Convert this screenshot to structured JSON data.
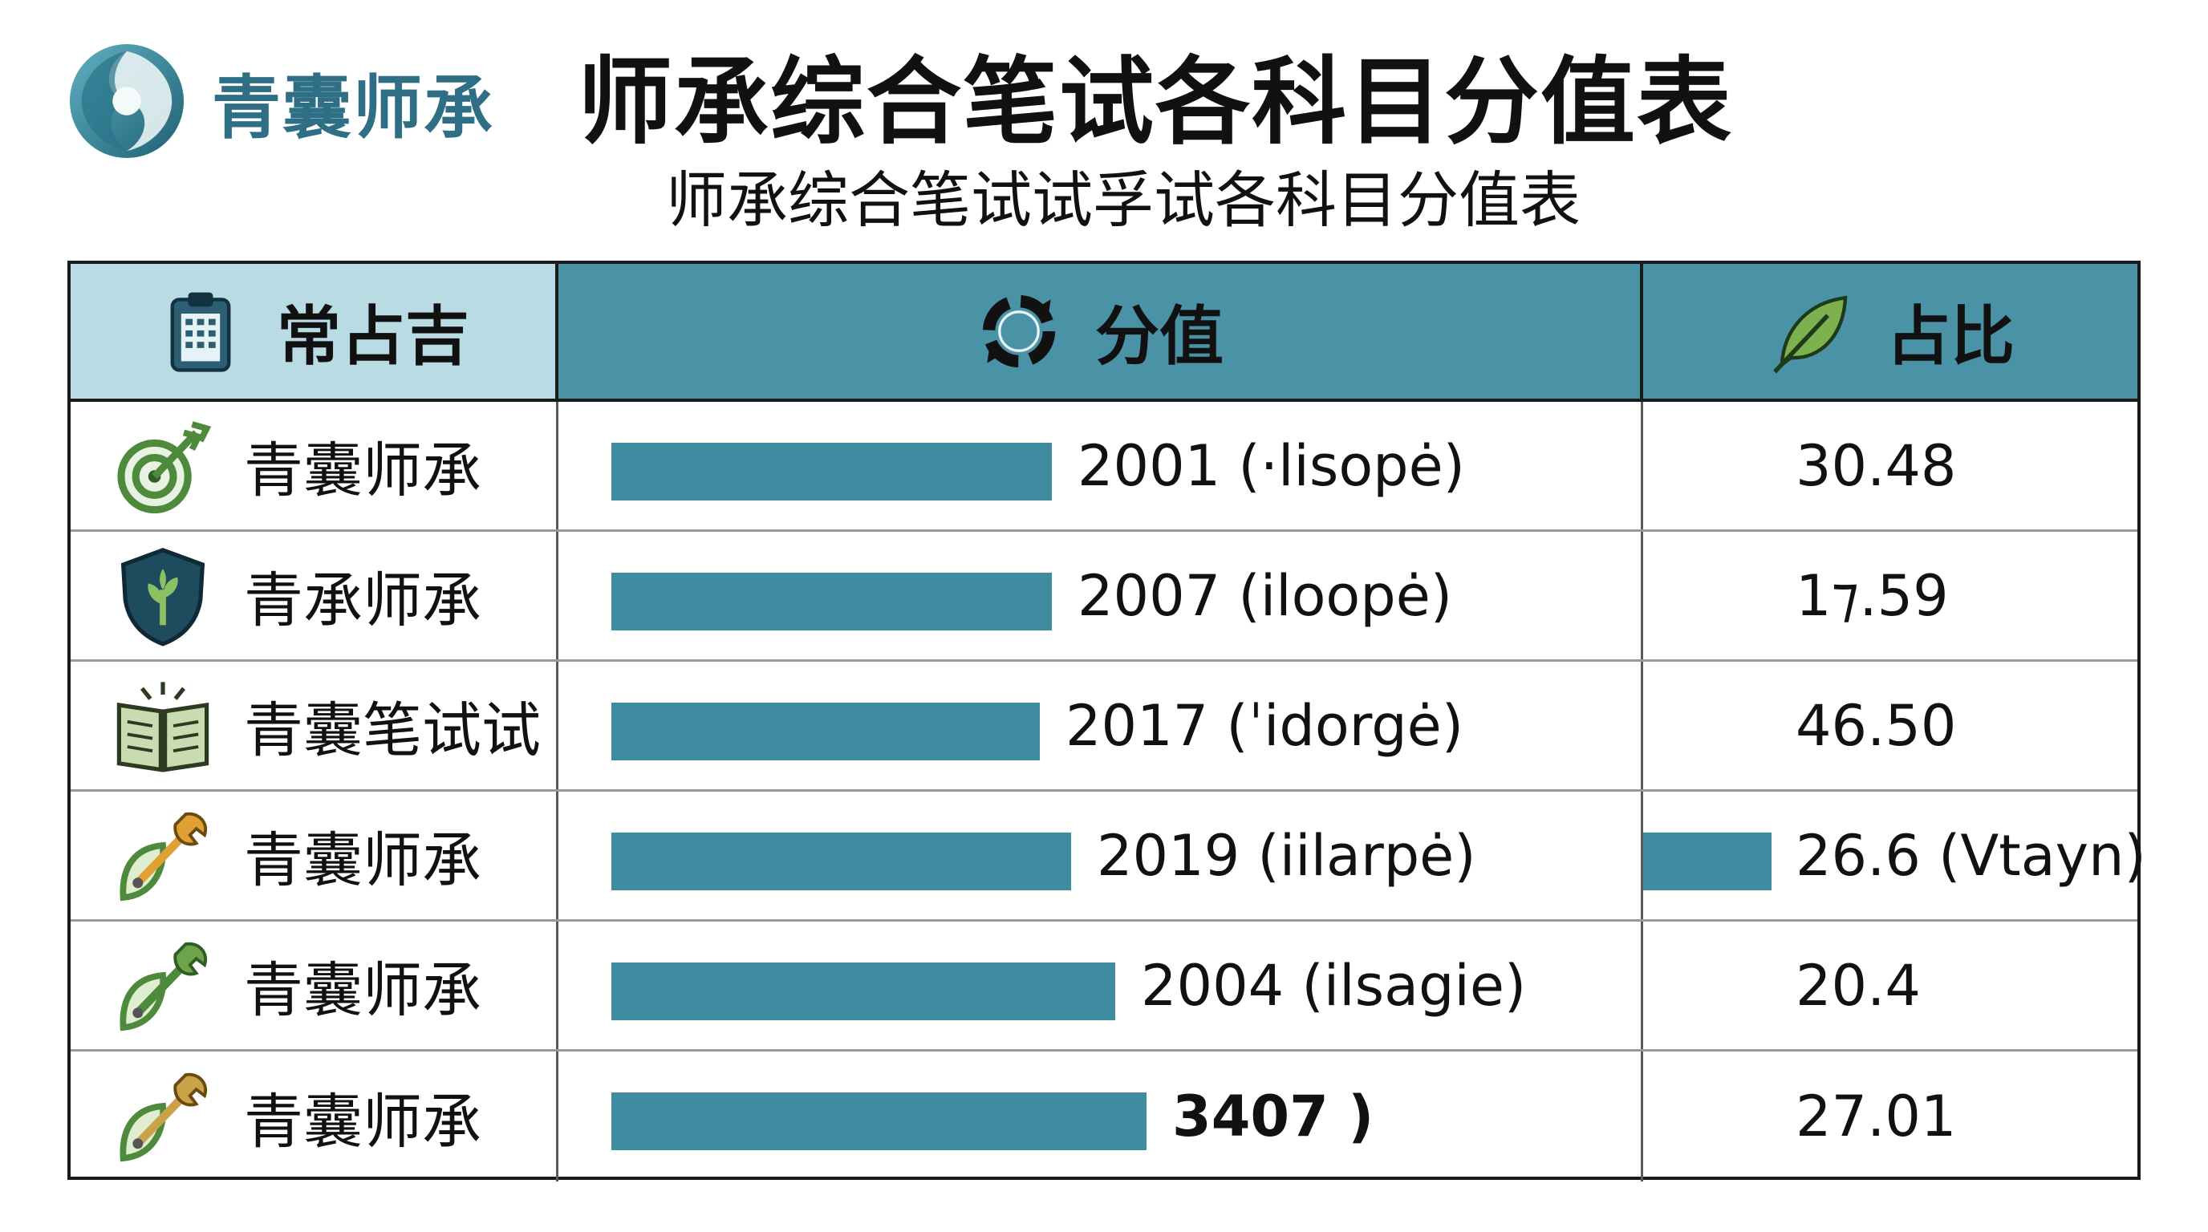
{
  "brand": {
    "name": "青囊师承"
  },
  "title": "师承综合笔试各科目分值表",
  "subtitle": "师承综合笔试试孚试各科目分值表",
  "colors": {
    "bar": "#3f8ca1",
    "header_light": "#b9dbe3",
    "header_dark": "#4a93a6",
    "brand": "#2f6f86"
  },
  "table": {
    "headers": [
      {
        "label": "常占吉",
        "icon": "clipboard-icon"
      },
      {
        "label": "分值",
        "icon": "cycle-icon"
      },
      {
        "label": "占比",
        "icon": "leaf-icon"
      }
    ],
    "rows": [
      {
        "label": "青囊师承",
        "icon": "target-arrow-icon",
        "value_text": "2001 (·lisopė)",
        "pct": "30.48"
      },
      {
        "label": "青承师承",
        "icon": "shield-sprout-icon",
        "value_text": "2007 (iloopė)",
        "pct": "1⁊.59"
      },
      {
        "label": "青囊笔试试",
        "icon": "open-book-icon",
        "value_text": "2017 (ˈidorgė)",
        "pct": "46.50"
      },
      {
        "label": "青囊师承",
        "icon": "leaf-wrench-icon",
        "value_text": "2019 (iilarpė)",
        "pct": "26.6 (Vtayn)",
        "pct_bar": true
      },
      {
        "label": "青囊师承",
        "icon": "leaf-wrench-icon",
        "value_text": "2004 (ilsagie)",
        "pct": "20.4"
      },
      {
        "label": "青囊师承",
        "icon": "leaf-wrench-icon",
        "value_text": "3407 )",
        "pct": "27.01"
      }
    ]
  },
  "chart_data": {
    "type": "bar",
    "orientation": "horizontal",
    "title": "师承综合笔试各科目分值表",
    "categories": [
      "青囊师承",
      "青承师承",
      "青囊笔试试",
      "青囊师承",
      "青囊师承",
      "青囊师承"
    ],
    "values": [
      2001,
      2007,
      2017,
      2019,
      2004,
      3407
    ],
    "bar_fraction": [
      0.7,
      0.7,
      0.68,
      0.73,
      0.8,
      0.85
    ],
    "value_labels": [
      "2001 (·lisopė)",
      "2007 (iloopė)",
      "2017 (ˈidorgė)",
      "2019 (iilarpė)",
      "2004 (ilsagie)",
      "3407 )"
    ],
    "share_labels": [
      "30.48",
      "1⁊.59",
      "46.50",
      "26.6 (Vtayn)",
      "20.4",
      "27.01"
    ],
    "grid": false
  }
}
